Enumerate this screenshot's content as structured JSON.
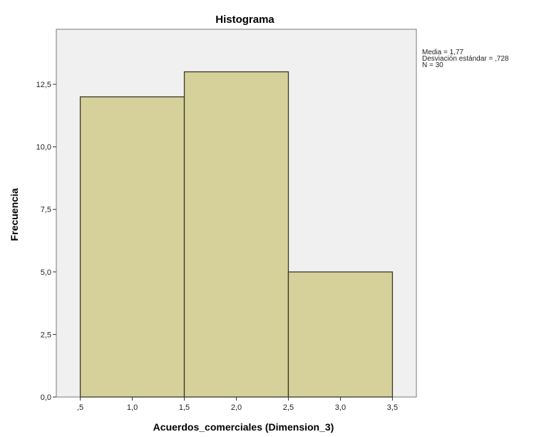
{
  "chart_data": {
    "type": "bar",
    "title": "Histograma",
    "xlabel": "Acuerdos_comerciales (Dimension_3)",
    "ylabel": "Frecuencia",
    "bins": [
      {
        "start": 0.5,
        "end": 1.5,
        "value": 12
      },
      {
        "start": 1.5,
        "end": 2.5,
        "value": 13
      },
      {
        "start": 2.5,
        "end": 3.5,
        "value": 5
      }
    ],
    "x_ticks": [
      {
        "value": 0.5,
        "label": ",5"
      },
      {
        "value": 1.0,
        "label": "1,0"
      },
      {
        "value": 1.5,
        "label": "1,5"
      },
      {
        "value": 2.0,
        "label": "2,0"
      },
      {
        "value": 2.5,
        "label": "2,5"
      },
      {
        "value": 3.0,
        "label": "3,0"
      },
      {
        "value": 3.5,
        "label": "3,5"
      }
    ],
    "y_ticks": [
      {
        "value": 0,
        "label": "0,0"
      },
      {
        "value": 2.5,
        "label": "2,5"
      },
      {
        "value": 5,
        "label": "5,0"
      },
      {
        "value": 7.5,
        "label": "7,5"
      },
      {
        "value": 10,
        "label": "10,0"
      },
      {
        "value": 12.5,
        "label": "12,5"
      }
    ],
    "xlim": [
      0.27,
      3.73
    ],
    "ylim": [
      0,
      14.7
    ],
    "grid": false,
    "stats": [
      "Media = 1,77",
      "Desviación estándar = ,728",
      "N = 30"
    ],
    "colors": {
      "bar_fill": "#d6d09a",
      "bar_stroke": "#3a3a2a",
      "plot_background": "#f0f0f0",
      "frame": "#7a7a7a",
      "axis": "#333333"
    }
  }
}
